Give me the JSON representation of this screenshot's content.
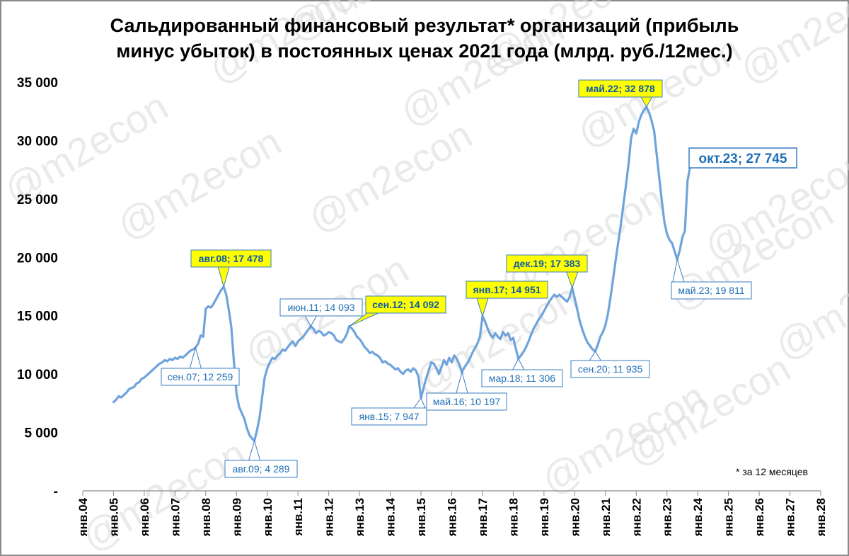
{
  "title_line1": "Сальдированный финансовый результат* организаций (прибыль",
  "title_line2": "минус убыток) в постоянных ценах 2021 года (млрд. руб./12мес.)",
  "footnote": "* за 12 месяцев",
  "watermark": "@m2econ",
  "colors": {
    "line": "#6fa3dc",
    "label_text": "#1f6fb6",
    "label_border": "#3a7dc3",
    "highlight_fill": "#ffff00",
    "highlight_text": "#0d5aa7",
    "watermark": "#d9d9d9"
  },
  "chart_data": {
    "type": "line",
    "title": "Сальдированный финансовый результат* организаций (прибыль минус убыток) в постоянных ценах 2021 года (млрд. руб./12мес.)",
    "xlabel": "",
    "ylabel": "",
    "ylim": [
      0,
      35000
    ],
    "yticks": [
      0,
      5000,
      10000,
      15000,
      20000,
      25000,
      30000,
      35000
    ],
    "ytick_labels": [
      "-",
      "5 000",
      "10 000",
      "15 000",
      "20 000",
      "25 000",
      "30 000",
      "35 000"
    ],
    "xlim": [
      "2004-01",
      "2028-01"
    ],
    "xtick_labels": [
      "янв.04",
      "янв.05",
      "янв.06",
      "янв.07",
      "янв.08",
      "янв.09",
      "янв.10",
      "янв.11",
      "янв.12",
      "янв.13",
      "янв.14",
      "янв.15",
      "янв.16",
      "янв.17",
      "янв.18",
      "янв.19",
      "янв.20",
      "янв.21",
      "янв.22",
      "янв.23",
      "янв.24",
      "янв.25",
      "янв.26",
      "янв.27",
      "янв.28"
    ],
    "grid": false,
    "series": [
      {
        "points": [
          [
            "2005-01",
            7600
          ],
          [
            "2005-02",
            7800
          ],
          [
            "2005-03",
            8100
          ],
          [
            "2005-04",
            8000
          ],
          [
            "2005-05",
            8200
          ],
          [
            "2005-06",
            8400
          ],
          [
            "2005-07",
            8700
          ],
          [
            "2005-08",
            8800
          ],
          [
            "2005-09",
            8900
          ],
          [
            "2005-10",
            9200
          ],
          [
            "2005-11",
            9300
          ],
          [
            "2005-12",
            9600
          ],
          [
            "2006-01",
            9700
          ],
          [
            "2006-02",
            9900
          ],
          [
            "2006-03",
            10100
          ],
          [
            "2006-04",
            10300
          ],
          [
            "2006-05",
            10500
          ],
          [
            "2006-06",
            10700
          ],
          [
            "2006-07",
            10900
          ],
          [
            "2006-08",
            11000
          ],
          [
            "2006-09",
            11200
          ],
          [
            "2006-10",
            11100
          ],
          [
            "2006-11",
            11300
          ],
          [
            "2006-12",
            11200
          ],
          [
            "2007-01",
            11400
          ],
          [
            "2007-02",
            11300
          ],
          [
            "2007-03",
            11500
          ],
          [
            "2007-04",
            11400
          ],
          [
            "2007-05",
            11600
          ],
          [
            "2007-06",
            11800
          ],
          [
            "2007-07",
            12000
          ],
          [
            "2007-08",
            12100
          ],
          [
            "2007-09",
            12259
          ],
          [
            "2007-10",
            12600
          ],
          [
            "2007-11",
            13300
          ],
          [
            "2007-12",
            13200
          ],
          [
            "2008-01",
            15600
          ],
          [
            "2008-02",
            15800
          ],
          [
            "2008-03",
            15700
          ],
          [
            "2008-04",
            16000
          ],
          [
            "2008-05",
            16400
          ],
          [
            "2008-06",
            16800
          ],
          [
            "2008-07",
            17200
          ],
          [
            "2008-08",
            17478
          ],
          [
            "2008-09",
            16800
          ],
          [
            "2008-10",
            15500
          ],
          [
            "2008-11",
            14000
          ],
          [
            "2008-12",
            11000
          ],
          [
            "2009-01",
            8300
          ],
          [
            "2009-02",
            7200
          ],
          [
            "2009-03",
            6700
          ],
          [
            "2009-04",
            6200
          ],
          [
            "2009-05",
            5400
          ],
          [
            "2009-06",
            4800
          ],
          [
            "2009-07",
            4500
          ],
          [
            "2009-08",
            4289
          ],
          [
            "2009-09",
            5200
          ],
          [
            "2009-10",
            6300
          ],
          [
            "2009-11",
            8000
          ],
          [
            "2009-12",
            9700
          ],
          [
            "2010-01",
            10500
          ],
          [
            "2010-02",
            11000
          ],
          [
            "2010-03",
            11400
          ],
          [
            "2010-04",
            11300
          ],
          [
            "2010-05",
            11600
          ],
          [
            "2010-06",
            11800
          ],
          [
            "2010-07",
            12100
          ],
          [
            "2010-08",
            12000
          ],
          [
            "2010-09",
            12300
          ],
          [
            "2010-10",
            12600
          ],
          [
            "2010-11",
            12800
          ],
          [
            "2010-12",
            12400
          ],
          [
            "2011-01",
            12800
          ],
          [
            "2011-02",
            13000
          ],
          [
            "2011-03",
            13200
          ],
          [
            "2011-04",
            13500
          ],
          [
            "2011-05",
            13800
          ],
          [
            "2011-06",
            14093
          ],
          [
            "2011-07",
            13900
          ],
          [
            "2011-08",
            13500
          ],
          [
            "2011-09",
            13700
          ],
          [
            "2011-10",
            13600
          ],
          [
            "2011-11",
            13300
          ],
          [
            "2011-12",
            13400
          ],
          [
            "2012-01",
            13600
          ],
          [
            "2012-02",
            13500
          ],
          [
            "2012-03",
            13300
          ],
          [
            "2012-04",
            12900
          ],
          [
            "2012-05",
            12800
          ],
          [
            "2012-06",
            12700
          ],
          [
            "2012-07",
            13000
          ],
          [
            "2012-08",
            13400
          ],
          [
            "2012-09",
            14092
          ],
          [
            "2012-10",
            13900
          ],
          [
            "2012-11",
            13600
          ],
          [
            "2012-12",
            13200
          ],
          [
            "2013-01",
            13000
          ],
          [
            "2013-02",
            12700
          ],
          [
            "2013-03",
            12300
          ],
          [
            "2013-04",
            12100
          ],
          [
            "2013-05",
            11800
          ],
          [
            "2013-06",
            11900
          ],
          [
            "2013-07",
            11700
          ],
          [
            "2013-08",
            11600
          ],
          [
            "2013-09",
            11400
          ],
          [
            "2013-10",
            11000
          ],
          [
            "2013-11",
            11100
          ],
          [
            "2013-12",
            10900
          ],
          [
            "2014-01",
            10800
          ],
          [
            "2014-02",
            10600
          ],
          [
            "2014-03",
            10400
          ],
          [
            "2014-04",
            10500
          ],
          [
            "2014-05",
            10200
          ],
          [
            "2014-06",
            10000
          ],
          [
            "2014-07",
            10300
          ],
          [
            "2014-08",
            10400
          ],
          [
            "2014-09",
            10200
          ],
          [
            "2014-10",
            10500
          ],
          [
            "2014-11",
            10300
          ],
          [
            "2014-12",
            9800
          ],
          [
            "2015-01",
            7947
          ],
          [
            "2015-02",
            8800
          ],
          [
            "2015-03",
            9600
          ],
          [
            "2015-04",
            10300
          ],
          [
            "2015-05",
            11000
          ],
          [
            "2015-06",
            10900
          ],
          [
            "2015-07",
            10500
          ],
          [
            "2015-08",
            10000
          ],
          [
            "2015-09",
            10600
          ],
          [
            "2015-10",
            11200
          ],
          [
            "2015-11",
            10800
          ],
          [
            "2015-12",
            11400
          ],
          [
            "2016-01",
            11000
          ],
          [
            "2016-02",
            11600
          ],
          [
            "2016-03",
            11300
          ],
          [
            "2016-04",
            10800
          ],
          [
            "2016-05",
            10197
          ],
          [
            "2016-06",
            10600
          ],
          [
            "2016-07",
            10900
          ],
          [
            "2016-08",
            11300
          ],
          [
            "2016-09",
            11800
          ],
          [
            "2016-10",
            12200
          ],
          [
            "2016-11",
            12600
          ],
          [
            "2016-12",
            13200
          ],
          [
            "2017-01",
            14951
          ],
          [
            "2017-02",
            14500
          ],
          [
            "2017-03",
            13900
          ],
          [
            "2017-04",
            13400
          ],
          [
            "2017-05",
            13100
          ],
          [
            "2017-06",
            13500
          ],
          [
            "2017-07",
            13200
          ],
          [
            "2017-08",
            13000
          ],
          [
            "2017-09",
            13600
          ],
          [
            "2017-10",
            13300
          ],
          [
            "2017-11",
            13500
          ],
          [
            "2017-12",
            12900
          ],
          [
            "2018-01",
            13100
          ],
          [
            "2018-02",
            12200
          ],
          [
            "2018-03",
            11306
          ],
          [
            "2018-04",
            11600
          ],
          [
            "2018-05",
            11900
          ],
          [
            "2018-06",
            12300
          ],
          [
            "2018-07",
            12800
          ],
          [
            "2018-08",
            13400
          ],
          [
            "2018-09",
            13900
          ],
          [
            "2018-10",
            14300
          ],
          [
            "2018-11",
            14700
          ],
          [
            "2018-12",
            15000
          ],
          [
            "2019-01",
            15400
          ],
          [
            "2019-02",
            15800
          ],
          [
            "2019-03",
            16200
          ],
          [
            "2019-04",
            16500
          ],
          [
            "2019-05",
            16800
          ],
          [
            "2019-06",
            16600
          ],
          [
            "2019-07",
            16800
          ],
          [
            "2019-08",
            16600
          ],
          [
            "2019-09",
            16400
          ],
          [
            "2019-10",
            16200
          ],
          [
            "2019-11",
            16600
          ],
          [
            "2019-12",
            17383
          ],
          [
            "2020-01",
            16500
          ],
          [
            "2020-02",
            15500
          ],
          [
            "2020-03",
            14500
          ],
          [
            "2020-04",
            13800
          ],
          [
            "2020-05",
            13200
          ],
          [
            "2020-06",
            12700
          ],
          [
            "2020-07",
            12400
          ],
          [
            "2020-08",
            12100
          ],
          [
            "2020-09",
            11935
          ],
          [
            "2020-10",
            12500
          ],
          [
            "2020-11",
            13200
          ],
          [
            "2020-12",
            13600
          ],
          [
            "2021-01",
            14200
          ],
          [
            "2021-02",
            15200
          ],
          [
            "2021-03",
            16600
          ],
          [
            "2021-04",
            18200
          ],
          [
            "2021-05",
            19800
          ],
          [
            "2021-06",
            21300
          ],
          [
            "2021-07",
            22800
          ],
          [
            "2021-08",
            24500
          ],
          [
            "2021-09",
            26200
          ],
          [
            "2021-10",
            28000
          ],
          [
            "2021-11",
            30200
          ],
          [
            "2021-12",
            31000
          ],
          [
            "2022-01",
            30600
          ],
          [
            "2022-02",
            31600
          ],
          [
            "2022-03",
            32200
          ],
          [
            "2022-04",
            32600
          ],
          [
            "2022-05",
            32878
          ],
          [
            "2022-06",
            32400
          ],
          [
            "2022-07",
            31700
          ],
          [
            "2022-08",
            30800
          ],
          [
            "2022-09",
            28800
          ],
          [
            "2022-10",
            26800
          ],
          [
            "2022-11",
            24800
          ],
          [
            "2022-12",
            23000
          ],
          [
            "2023-01",
            22000
          ],
          [
            "2023-02",
            21500
          ],
          [
            "2023-03",
            21200
          ],
          [
            "2023-04",
            20500
          ],
          [
            "2023-05",
            19811
          ],
          [
            "2023-06",
            20600
          ],
          [
            "2023-07",
            21700
          ],
          [
            "2023-08",
            22300
          ],
          [
            "2023-09",
            26500
          ],
          [
            "2023-10",
            27745
          ]
        ]
      }
    ],
    "annotations": [
      {
        "date": "2007-09",
        "text": "сен.07;  12 259",
        "style": "plain"
      },
      {
        "date": "2008-08",
        "text": "авг.08;  17 478",
        "style": "highlight"
      },
      {
        "date": "2009-08",
        "text": "авг.09;  4 289",
        "style": "plain"
      },
      {
        "date": "2011-06",
        "text": "июн.11;  14 093",
        "style": "plain"
      },
      {
        "date": "2012-09",
        "text": "сен.12;  14 092",
        "style": "highlight"
      },
      {
        "date": "2015-01",
        "text": "янв.15;  7 947",
        "style": "plain"
      },
      {
        "date": "2016-05",
        "text": "май.16;  10 197",
        "style": "plain"
      },
      {
        "date": "2017-01",
        "text": "янв.17;  14 951",
        "style": "highlight"
      },
      {
        "date": "2018-03",
        "text": "мар.18;  11 306",
        "style": "plain"
      },
      {
        "date": "2019-12",
        "text": "дек.19;  17 383",
        "style": "highlight"
      },
      {
        "date": "2020-09",
        "text": "сен.20;  11 935",
        "style": "plain"
      },
      {
        "date": "2022-05",
        "text": "май.22;  32 878",
        "style": "highlight"
      },
      {
        "date": "2023-05",
        "text": "май.23;  19 811",
        "style": "plain"
      },
      {
        "date": "2023-10",
        "text": "окт.23;  27 745",
        "style": "big"
      }
    ]
  }
}
